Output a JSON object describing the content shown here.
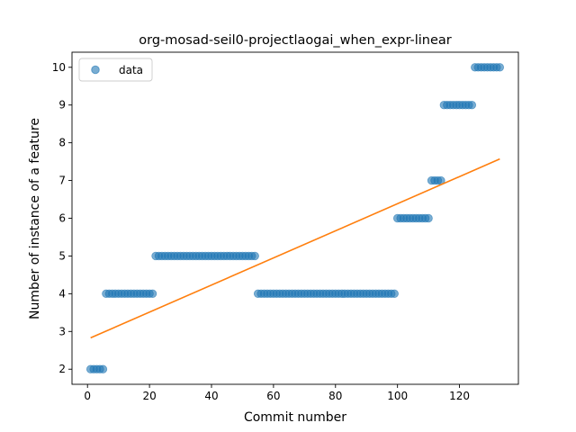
{
  "chart_data": {
    "type": "scatter",
    "title": "org-mosad-seil0-projectlaogai_when_expr-linear",
    "xlabel": "Commit number",
    "ylabel": "Number of instance of a feature",
    "xlim": [
      -5,
      139
    ],
    "ylim": [
      1.6,
      10.4
    ],
    "x_ticks": [
      0,
      20,
      40,
      60,
      80,
      100,
      120
    ],
    "y_ticks": [
      2,
      3,
      4,
      5,
      6,
      7,
      8,
      9,
      10
    ],
    "grid": false,
    "legend": {
      "position": "top-left",
      "entries": [
        "data"
      ]
    },
    "colors": {
      "data": "#1f77b4",
      "fit": "#ff7f0e"
    },
    "series": [
      {
        "name": "data",
        "kind": "scatter",
        "points": [
          [
            1,
            2
          ],
          [
            2,
            2
          ],
          [
            3,
            2
          ],
          [
            4,
            2
          ],
          [
            5,
            2
          ],
          [
            6,
            4
          ],
          [
            7,
            4
          ],
          [
            8,
            4
          ],
          [
            9,
            4
          ],
          [
            10,
            4
          ],
          [
            11,
            4
          ],
          [
            12,
            4
          ],
          [
            13,
            4
          ],
          [
            14,
            4
          ],
          [
            15,
            4
          ],
          [
            16,
            4
          ],
          [
            17,
            4
          ],
          [
            18,
            4
          ],
          [
            19,
            4
          ],
          [
            20,
            4
          ],
          [
            21,
            4
          ],
          [
            22,
            5
          ],
          [
            23,
            5
          ],
          [
            24,
            5
          ],
          [
            25,
            5
          ],
          [
            26,
            5
          ],
          [
            27,
            5
          ],
          [
            28,
            5
          ],
          [
            29,
            5
          ],
          [
            30,
            5
          ],
          [
            31,
            5
          ],
          [
            32,
            5
          ],
          [
            33,
            5
          ],
          [
            34,
            5
          ],
          [
            35,
            5
          ],
          [
            36,
            5
          ],
          [
            37,
            5
          ],
          [
            38,
            5
          ],
          [
            39,
            5
          ],
          [
            40,
            5
          ],
          [
            41,
            5
          ],
          [
            42,
            5
          ],
          [
            43,
            5
          ],
          [
            44,
            5
          ],
          [
            45,
            5
          ],
          [
            46,
            5
          ],
          [
            47,
            5
          ],
          [
            48,
            5
          ],
          [
            49,
            5
          ],
          [
            50,
            5
          ],
          [
            51,
            5
          ],
          [
            52,
            5
          ],
          [
            53,
            5
          ],
          [
            54,
            5
          ],
          [
            55,
            4
          ],
          [
            56,
            4
          ],
          [
            57,
            4
          ],
          [
            58,
            4
          ],
          [
            59,
            4
          ],
          [
            60,
            4
          ],
          [
            61,
            4
          ],
          [
            62,
            4
          ],
          [
            63,
            4
          ],
          [
            64,
            4
          ],
          [
            65,
            4
          ],
          [
            66,
            4
          ],
          [
            67,
            4
          ],
          [
            68,
            4
          ],
          [
            69,
            4
          ],
          [
            70,
            4
          ],
          [
            71,
            4
          ],
          [
            72,
            4
          ],
          [
            73,
            4
          ],
          [
            74,
            4
          ],
          [
            75,
            4
          ],
          [
            76,
            4
          ],
          [
            77,
            4
          ],
          [
            78,
            4
          ],
          [
            79,
            4
          ],
          [
            80,
            4
          ],
          [
            81,
            4
          ],
          [
            82,
            4
          ],
          [
            83,
            4
          ],
          [
            84,
            4
          ],
          [
            85,
            4
          ],
          [
            86,
            4
          ],
          [
            87,
            4
          ],
          [
            88,
            4
          ],
          [
            89,
            4
          ],
          [
            90,
            4
          ],
          [
            91,
            4
          ],
          [
            92,
            4
          ],
          [
            93,
            4
          ],
          [
            94,
            4
          ],
          [
            95,
            4
          ],
          [
            96,
            4
          ],
          [
            97,
            4
          ],
          [
            98,
            4
          ],
          [
            99,
            4
          ],
          [
            100,
            6
          ],
          [
            101,
            6
          ],
          [
            102,
            6
          ],
          [
            103,
            6
          ],
          [
            104,
            6
          ],
          [
            105,
            6
          ],
          [
            106,
            6
          ],
          [
            107,
            6
          ],
          [
            108,
            6
          ],
          [
            109,
            6
          ],
          [
            110,
            6
          ],
          [
            111,
            7
          ],
          [
            112,
            7
          ],
          [
            113,
            7
          ],
          [
            114,
            7
          ],
          [
            115,
            9
          ],
          [
            116,
            9
          ],
          [
            117,
            9
          ],
          [
            118,
            9
          ],
          [
            119,
            9
          ],
          [
            120,
            9
          ],
          [
            121,
            9
          ],
          [
            122,
            9
          ],
          [
            123,
            9
          ],
          [
            124,
            9
          ],
          [
            125,
            10
          ],
          [
            126,
            10
          ],
          [
            127,
            10
          ],
          [
            128,
            10
          ],
          [
            129,
            10
          ],
          [
            130,
            10
          ],
          [
            131,
            10
          ],
          [
            132,
            10
          ],
          [
            133,
            10
          ]
        ]
      },
      {
        "kind": "line",
        "points": [
          [
            1,
            2.83
          ],
          [
            133,
            7.57
          ]
        ]
      }
    ]
  }
}
